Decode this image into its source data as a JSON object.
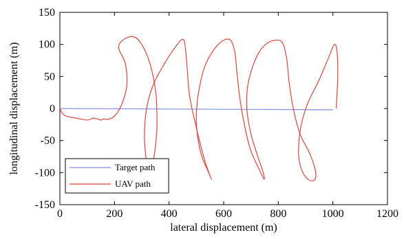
{
  "chart_data": {
    "type": "line",
    "xlabel": "lateral displacement (m)",
    "ylabel": "longitudinal displacement (m)",
    "xlim": [
      0,
      1200
    ],
    "ylim": [
      -150,
      150
    ],
    "xticks": [
      0,
      200,
      400,
      600,
      800,
      1000,
      1200
    ],
    "yticks": [
      -150,
      -100,
      -50,
      0,
      50,
      100,
      150
    ],
    "grid": false,
    "legend_position": "bottom-left",
    "series": [
      {
        "name": "Target path",
        "color": "#7b8fe0",
        "x": [
          0,
          1000
        ],
        "y": [
          0,
          -2
        ]
      },
      {
        "name": "UAV path",
        "color": "#e0443c",
        "x": [
          0,
          10,
          25,
          60,
          100,
          125,
          150,
          160,
          175,
          200,
          225,
          245,
          240,
          215,
          235,
          270,
          300,
          330,
          350,
          355,
          355,
          345,
          330,
          315,
          310,
          320,
          345,
          390,
          430,
          450,
          458,
          465,
          475,
          500,
          530,
          550,
          555,
          545,
          520,
          505,
          500,
          510,
          535,
          580,
          620,
          640,
          650,
          665,
          695,
          730,
          748,
          745,
          725,
          700,
          685,
          690,
          720,
          760,
          810,
          830,
          840,
          855,
          880,
          915,
          935,
          935,
          915,
          890,
          875,
          880,
          905,
          950,
          985,
          1005,
          1015,
          1018,
          1015,
          1012
        ],
        "y": [
          0,
          -8,
          -12,
          -15,
          -18,
          -15,
          -18,
          -16,
          -17,
          -12,
          5,
          35,
          70,
          95,
          108,
          112,
          100,
          70,
          30,
          0,
          -35,
          -75,
          -100,
          -75,
          -35,
          5,
          40,
          75,
          100,
          108,
          100,
          70,
          20,
          -30,
          -80,
          -105,
          -110,
          -100,
          -75,
          -45,
          -10,
          30,
          70,
          100,
          108,
          90,
          50,
          0,
          -60,
          -95,
          -110,
          -100,
          -75,
          -40,
          0,
          40,
          80,
          102,
          105,
          80,
          40,
          0,
          -40,
          -70,
          -95,
          -110,
          -112,
          -100,
          -75,
          -35,
          5,
          45,
          80,
          100,
          90,
          55,
          20,
          0
        ]
      }
    ]
  }
}
